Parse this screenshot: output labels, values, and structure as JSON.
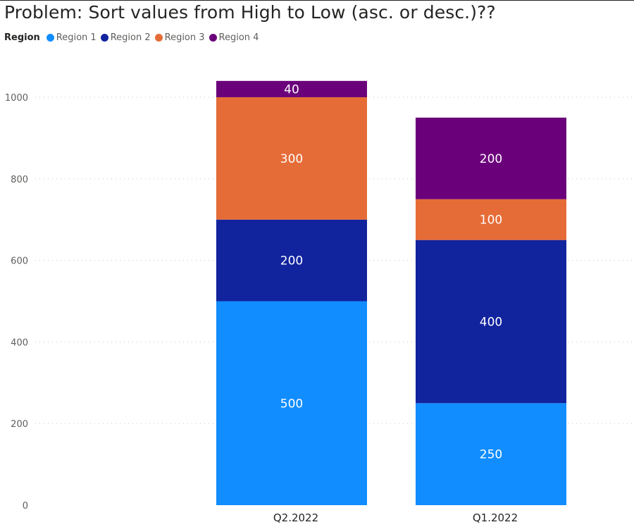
{
  "title": "Problem: Sort values from High to Low (asc. or desc.)??",
  "legend": {
    "title": "Region",
    "items": [
      {
        "label": "Region 1",
        "color": "#118dff"
      },
      {
        "label": "Region 2",
        "color": "#12239e"
      },
      {
        "label": "Region 3",
        "color": "#e66c37"
      },
      {
        "label": "Region 4",
        "color": "#6b007b"
      }
    ]
  },
  "chart_data": {
    "type": "bar",
    "stacked": true,
    "title": "Problem: Sort values from High to Low (asc. or desc.)??",
    "categories": [
      "Q2.2022",
      "Q1.2022"
    ],
    "series": [
      {
        "name": "Region 1",
        "color": "#118dff",
        "values": [
          500,
          250
        ]
      },
      {
        "name": "Region 2",
        "color": "#12239e",
        "values": [
          200,
          400
        ]
      },
      {
        "name": "Region 3",
        "color": "#e66c37",
        "values": [
          300,
          100
        ]
      },
      {
        "name": "Region 4",
        "color": "#6b007b",
        "values": [
          40,
          200
        ]
      }
    ],
    "ylim": [
      0,
      1000
    ],
    "yticks": [
      0,
      200,
      400,
      600,
      800,
      1000
    ],
    "grid": true,
    "legend_position": "top-left",
    "xlabel": "",
    "ylabel": ""
  }
}
